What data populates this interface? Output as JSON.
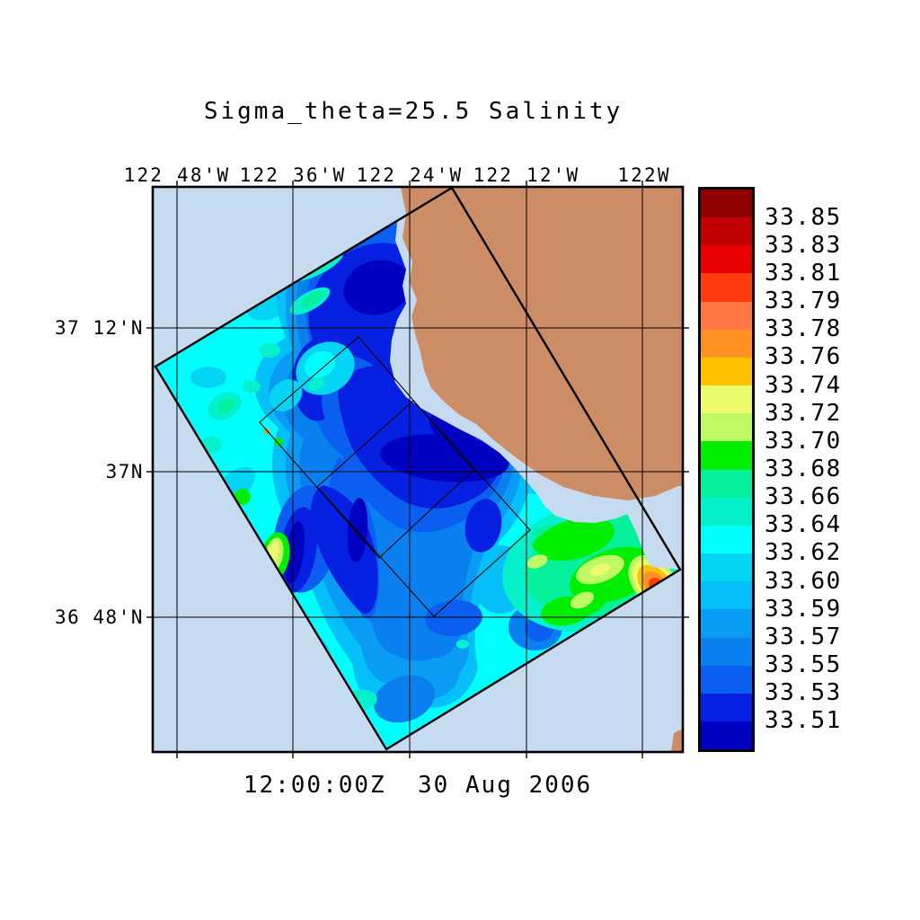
{
  "title": "Sigma_theta=25.5 Salinity",
  "timestamp": "12:00:00Z  30 Aug 2006",
  "axes": {
    "top_ticks": [
      "122 48'W",
      "122 36'W",
      "122 24'W",
      "122 12'W",
      "122W"
    ],
    "left_ticks": [
      "37 12'N",
      "37N",
      "36 48'N"
    ]
  },
  "colorbar": {
    "labels": [
      "33.85",
      "33.83",
      "33.81",
      "33.79",
      "33.78",
      "33.76",
      "33.74",
      "33.72",
      "33.70",
      "33.68",
      "33.66",
      "33.64",
      "33.62",
      "33.60",
      "33.59",
      "33.57",
      "33.55",
      "33.53",
      "33.51"
    ],
    "colors": [
      "#900000",
      "#C00000",
      "#E80000",
      "#FF3C0E",
      "#FF7744",
      "#FF9222",
      "#FFC000",
      "#EDFA6E",
      "#BDFA66",
      "#00EE00",
      "#05F09A",
      "#06F0CC",
      "#00FFFF",
      "#05D5F5",
      "#05BFF8",
      "#0A9BF5",
      "#0A80F0",
      "#0A5FF0",
      "#0520E0",
      "#0000C0"
    ]
  },
  "map": {
    "land_color": "#CC8C66",
    "ocean_background_color": "#C6DBF0",
    "grid_color": "#000000"
  },
  "chart_data": {
    "type": "heatmap",
    "title": "Sigma_theta=25.5 Salinity",
    "time_label": "12:00:00Z  30 Aug 2006",
    "x_tick_labels": [
      "122 48'W",
      "122 36'W",
      "122 24'W",
      "122 12'W",
      "122W"
    ],
    "y_tick_labels": [
      "37 12'N",
      "37N",
      "36 48'N"
    ],
    "color_scale_labels": [
      33.85,
      33.83,
      33.81,
      33.79,
      33.78,
      33.76,
      33.74,
      33.72,
      33.7,
      33.68,
      33.66,
      33.64,
      33.62,
      33.6,
      33.59,
      33.57,
      33.55,
      33.53,
      33.51
    ],
    "color_scale_range": [
      33.51,
      33.85
    ],
    "palette_top_to_bottom": [
      "#900000",
      "#C00000",
      "#E80000",
      "#FF3C0E",
      "#FF7744",
      "#FF9222",
      "#FFC000",
      "#EDFA6E",
      "#BDFA66",
      "#00EE00",
      "#05F09A",
      "#06F0CC",
      "#00FFFF",
      "#05D5F5",
      "#05BFF8",
      "#0A9BF5",
      "#0A80F0",
      "#0A5FF0",
      "#0520E0",
      "#0000C0"
    ],
    "legend_position": "right",
    "grid": "on",
    "features": [
      "Rotated rectangular data swath over the Monterey Bay region; California coastline and land occupy the northeast",
      "Two thin-outlined nested rectangular subdomains drawn inside the swath",
      "Low-salinity dark-blue eddy field (~33.51-33.55) centered near 122 24'W, 37N",
      "High-salinity red/orange maximum (~33.80-33.85) on the southeast swath edge near 122W, 36 52'N",
      "Green/yellow patch (~33.66-33.74) in the southeast sector and a small yellow spot on the southwest swath edge",
      "Pale no-data band between the salinity field and the coast"
    ]
  }
}
